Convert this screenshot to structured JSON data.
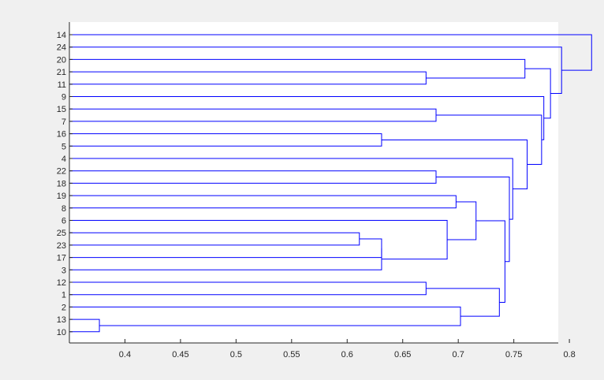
{
  "colors": {
    "figure_bg": "#f0f0f0",
    "axes_bg": "#ffffff",
    "axis": "#262626",
    "branch": "#0000ff"
  },
  "chart_data": {
    "type": "dendrogram",
    "title": "",
    "xlabel": "",
    "ylabel": "",
    "orientation": "horizontal",
    "grid": false,
    "xlim": [
      0.35,
      0.79
    ],
    "xticks": [
      0.4,
      0.45,
      0.5,
      0.55,
      0.6,
      0.65,
      0.7,
      0.75,
      0.8
    ],
    "xtick_labels": [
      "0.4",
      "0.45",
      "0.5",
      "0.55",
      "0.6",
      "0.65",
      "0.7",
      "0.75",
      "0.8"
    ],
    "leaf_order_top_to_bottom": [
      "14",
      "24",
      "20",
      "21",
      "11",
      "9",
      "15",
      "7",
      "16",
      "5",
      "4",
      "22",
      "18",
      "19",
      "8",
      "6",
      "25",
      "23",
      "17",
      "3",
      "12",
      "1",
      "2",
      "13",
      "10"
    ],
    "merges": [
      {
        "id": "m1",
        "children": [
          "13",
          "10"
        ],
        "height": 0.377
      },
      {
        "id": "m2",
        "children": [
          "25",
          "23"
        ],
        "height": 0.611
      },
      {
        "id": "m3",
        "children": [
          "m2",
          "17"
        ],
        "height": 0.631
      },
      {
        "id": "m4",
        "children": [
          "m3",
          "3"
        ],
        "height": 0.631
      },
      {
        "id": "m5",
        "children": [
          "16",
          "5"
        ],
        "height": 0.631
      },
      {
        "id": "m6",
        "children": [
          "21",
          "11"
        ],
        "height": 0.671
      },
      {
        "id": "m7",
        "children": [
          "12",
          "1"
        ],
        "height": 0.671
      },
      {
        "id": "m8",
        "children": [
          "15",
          "7"
        ],
        "height": 0.68
      },
      {
        "id": "m9",
        "children": [
          "22",
          "18"
        ],
        "height": 0.68
      },
      {
        "id": "m10",
        "children": [
          "6",
          "m4"
        ],
        "height": 0.69
      },
      {
        "id": "m11",
        "children": [
          "19",
          "8"
        ],
        "height": 0.698
      },
      {
        "id": "m12",
        "children": [
          "2",
          "m1"
        ],
        "height": 0.702
      },
      {
        "id": "m13",
        "children": [
          "m11",
          "m10"
        ],
        "height": 0.716
      },
      {
        "id": "m14",
        "children": [
          "m7",
          "m12"
        ],
        "height": 0.737
      },
      {
        "id": "m15",
        "children": [
          "m13",
          "m14"
        ],
        "height": 0.742
      },
      {
        "id": "m16",
        "children": [
          "m9",
          "m15"
        ],
        "height": 0.746
      },
      {
        "id": "m17",
        "children": [
          "4",
          "m16"
        ],
        "height": 0.749
      },
      {
        "id": "m18",
        "children": [
          "m5",
          "m17"
        ],
        "height": 0.762
      },
      {
        "id": "m19",
        "children": [
          "m8",
          "m18"
        ],
        "height": 0.775
      },
      {
        "id": "m20",
        "children": [
          "9",
          "m19"
        ],
        "height": 0.777
      },
      {
        "id": "m21",
        "children": [
          "20",
          "m6"
        ],
        "height": 0.76
      },
      {
        "id": "m22",
        "children": [
          "m21",
          "m20"
        ],
        "height": 0.783
      },
      {
        "id": "m23",
        "children": [
          "24",
          "m22"
        ],
        "height": 0.793
      },
      {
        "id": "m24",
        "children": [
          "14",
          "m23"
        ],
        "height": 0.82
      }
    ]
  }
}
